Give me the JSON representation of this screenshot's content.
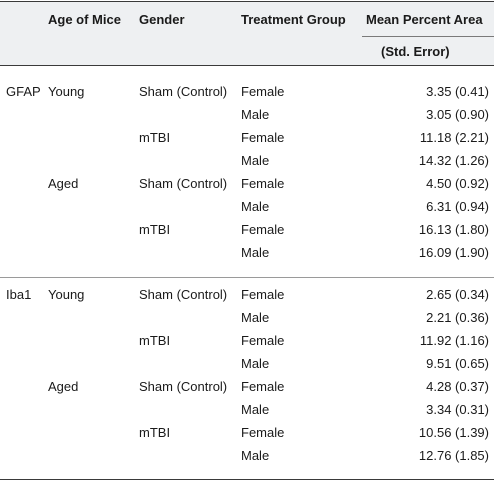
{
  "header": {
    "col_marker": "",
    "col_age": "Age of Mice",
    "col_gender": "Gender",
    "col_treatment": "Treatment Group",
    "col_mean": "Mean Percent Area",
    "col_mean_sub": "(Std. Error)"
  },
  "sections": [
    {
      "marker": "GFAP",
      "rows": [
        {
          "age": "Young",
          "gender": "Sham (Control)",
          "treatment": "Female",
          "value": "3.35 (0.41)"
        },
        {
          "age": "",
          "gender": "",
          "treatment": "Male",
          "value": "3.05 (0.90)"
        },
        {
          "age": "",
          "gender": "mTBI",
          "treatment": "Female",
          "value": "11.18 (2.21)"
        },
        {
          "age": "",
          "gender": "",
          "treatment": "Male",
          "value": "14.32 (1.26)"
        },
        {
          "age": "Aged",
          "gender": "Sham (Control)",
          "treatment": "Female",
          "value": "4.50 (0.92)"
        },
        {
          "age": "",
          "gender": "",
          "treatment": "Male",
          "value": "6.31 (0.94)"
        },
        {
          "age": "",
          "gender": "mTBI",
          "treatment": "Female",
          "value": "16.13 (1.80)"
        },
        {
          "age": "",
          "gender": "",
          "treatment": "Male",
          "value": "16.09 (1.90)"
        }
      ]
    },
    {
      "marker": "Iba1",
      "rows": [
        {
          "age": "Young",
          "gender": "Sham (Control)",
          "treatment": "Female",
          "value": "2.65 (0.34)"
        },
        {
          "age": "",
          "gender": "",
          "treatment": "Male",
          "value": "2.21 (0.36)"
        },
        {
          "age": "",
          "gender": "mTBI",
          "treatment": "Female",
          "value": "11.92 (1.16)"
        },
        {
          "age": "",
          "gender": "",
          "treatment": "Male",
          "value": "9.51 (0.65)"
        },
        {
          "age": "Aged",
          "gender": "Sham (Control)",
          "treatment": "Female",
          "value": "4.28 (0.37)"
        },
        {
          "age": "",
          "gender": "",
          "treatment": "Male",
          "value": "3.34 (0.31)"
        },
        {
          "age": "",
          "gender": "mTBI",
          "treatment": "Female",
          "value": "10.56 (1.39)"
        },
        {
          "age": "",
          "gender": "",
          "treatment": "Male",
          "value": "12.76 (1.85)"
        }
      ]
    }
  ]
}
